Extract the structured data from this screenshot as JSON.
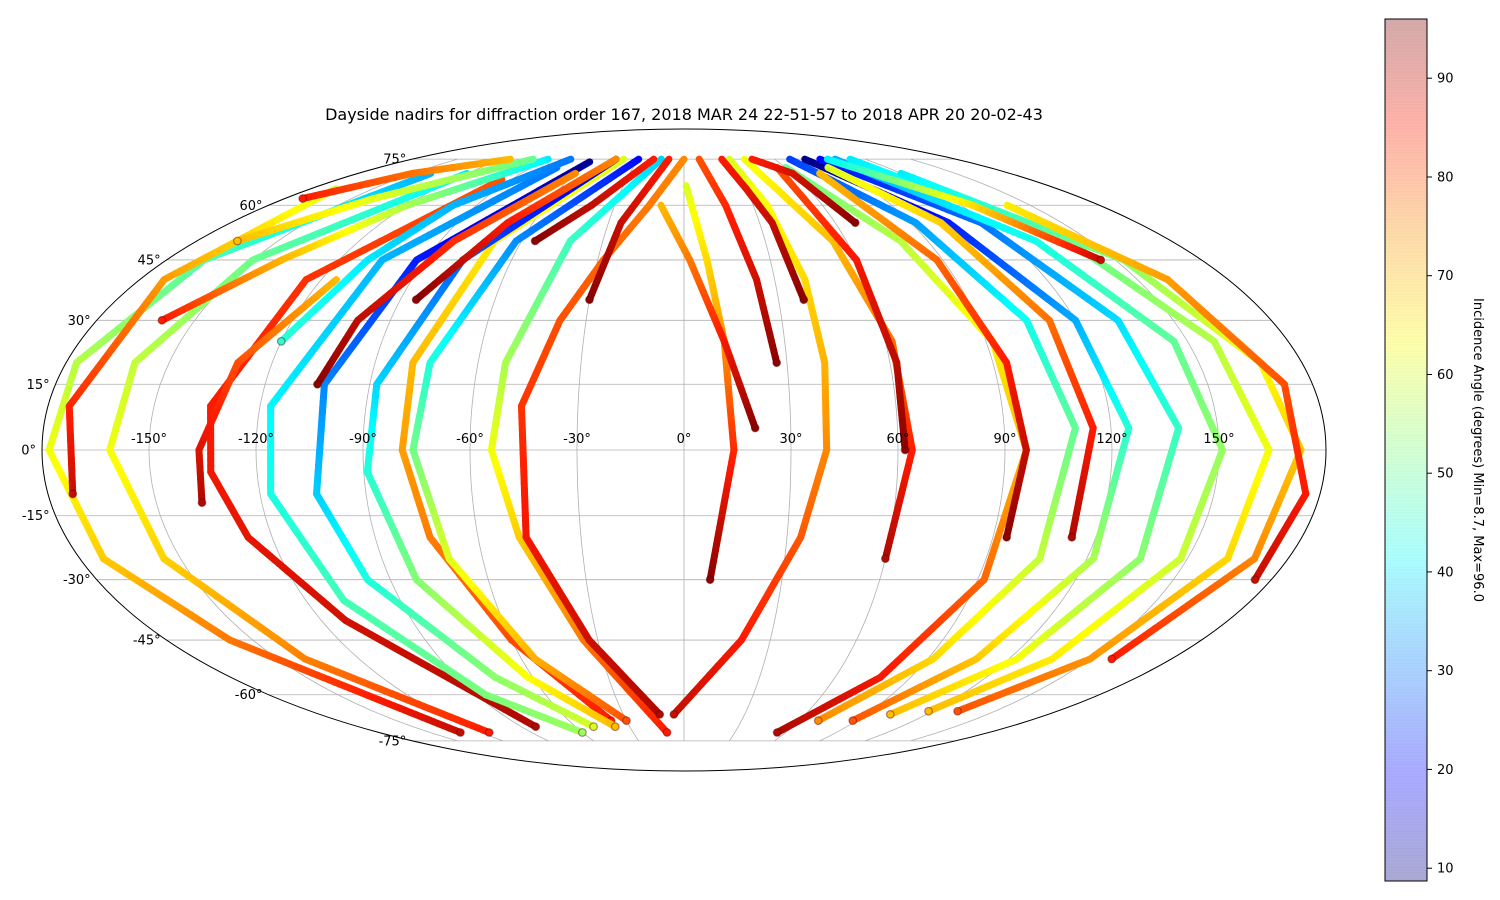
{
  "chart_data": {
    "type": "scatter",
    "projection": "mollweide",
    "title": "Dayside nadirs for diffraction order 167, 2018 MAR 24 22-51-57 to 2018 APR 20 20-02-43",
    "xlabel": "",
    "ylabel": "",
    "lon_ticks": [
      "-150°",
      "-120°",
      "-90°",
      "-60°",
      "-30°",
      "0°",
      "30°",
      "60°",
      "90°",
      "120°",
      "150°"
    ],
    "lon_tick_values": [
      -150,
      -120,
      -90,
      -60,
      -30,
      0,
      30,
      60,
      90,
      120,
      150
    ],
    "lat_ticks": [
      "75°",
      "60°",
      "45°",
      "30°",
      "15°",
      "0°",
      "-15°",
      "-30°",
      "-45°",
      "-60°",
      "-75°"
    ],
    "lat_tick_values": [
      75,
      60,
      45,
      30,
      15,
      0,
      -15,
      -30,
      -45,
      -60,
      -75
    ],
    "grid": true,
    "colormap": "jet",
    "colorbar": {
      "label": "Incidence Angle (degrees) Min=8.7, Max=96.0",
      "min": 8.7,
      "max": 96.0,
      "ticks": [
        "10",
        "20",
        "30",
        "40",
        "50",
        "60",
        "70",
        "80",
        "90"
      ],
      "tick_values": [
        10,
        20,
        30,
        40,
        50,
        60,
        70,
        80,
        90
      ]
    },
    "series": [
      {
        "lat": [
          75,
          50,
          20,
          0,
          -20,
          -45,
          -68
        ],
        "lon": [
          -40,
          -70,
          -79,
          -79,
          -74,
          -60,
          -38
        ],
        "inc_start": 60,
        "inc_end": 85
      },
      {
        "lat": [
          68,
          40,
          10,
          -5,
          -20,
          -40,
          -70
        ],
        "lon": [
          -95,
          -125,
          -134,
          -133,
          -127,
          -112,
          -82
        ],
        "inc_start": 80,
        "inc_end": 92
      },
      {
        "lat": [
          72,
          45,
          10,
          -10,
          -35,
          -60,
          -72
        ],
        "lon": [
          -75,
          -105,
          -117,
          -117,
          -108,
          -86,
          -60
        ],
        "inc_start": 30,
        "inc_end": 55
      },
      {
        "lat": [
          74,
          45,
          15,
          -10,
          -30,
          -55,
          -70
        ],
        "lon": [
          -60,
          -93,
          -103,
          -104,
          -97,
          -75,
          -50
        ],
        "inc_start": 10,
        "inc_end": 60
      },
      {
        "lat": [
          75,
          45,
          15,
          -5,
          -30,
          -55,
          -70
        ],
        "lon": [
          -45,
          -77,
          -88,
          -89,
          -82,
          -62,
          -38
        ],
        "inc_start": 15,
        "inc_end": 70
      },
      {
        "lat": [
          75,
          50,
          20,
          0,
          -25,
          -50,
          -68
        ],
        "lon": [
          -30,
          -62,
          -74,
          -76,
          -70,
          -55,
          -30
        ],
        "inc_start": 20,
        "inc_end": 80
      },
      {
        "lat": [
          70,
          45,
          20,
          0,
          -25,
          -50,
          -72
        ],
        "lon": [
          -120,
          -150,
          -160,
          -161,
          -155,
          -140,
          -115
        ],
        "inc_start": 40,
        "inc_end": 85
      },
      {
        "lat": [
          70,
          45,
          20,
          0,
          -25,
          -45,
          -72
        ],
        "lon": [
          -140,
          -167,
          -177,
          -178,
          -173,
          -158,
          -132
        ],
        "inc_start": 35,
        "inc_end": 90
      },
      {
        "lat": [
          65,
          40,
          10,
          -10
        ],
        "lon": [
          -168,
          -172,
          -174,
          -173
        ],
        "inc_start": 60,
        "inc_end": 90
      },
      {
        "lat": [
          40,
          20,
          0,
          -12
        ],
        "lon": [
          -115,
          -130,
          -136,
          -137
        ],
        "inc_start": 70,
        "inc_end": 92
      },
      {
        "lat": [
          75,
          50,
          20,
          0,
          -20,
          -45,
          -72
        ],
        "lon": [
          -15,
          -42,
          -52,
          -54,
          -48,
          -35,
          -10
        ],
        "inc_start": 38,
        "inc_end": 85
      },
      {
        "lat": [
          75,
          60,
          45,
          30,
          10,
          -20,
          -45,
          -66
        ],
        "lon": [
          0,
          -15,
          -28,
          -38,
          -46,
          -46,
          -33,
          -12
        ],
        "inc_start": 75,
        "inc_end": 92
      },
      {
        "lat": [
          66,
          45,
          25,
          0,
          -30
        ],
        "lon": [
          1,
          8,
          12,
          14,
          8
        ],
        "inc_start": 60,
        "inc_end": 95
      },
      {
        "lat": [
          60,
          45,
          25,
          5
        ],
        "lon": [
          -10,
          2,
          12,
          20
        ],
        "inc_start": 70,
        "inc_end": 95
      },
      {
        "lat": [
          75,
          60,
          40,
          20,
          0,
          -20,
          -45,
          -66
        ],
        "lon": [
          30,
          36,
          40,
          41,
          40,
          34,
          20,
          -5
        ],
        "inc_start": 60,
        "inc_end": 90
      },
      {
        "lat": [
          72,
          50,
          25,
          0,
          -30,
          -55,
          -72
        ],
        "lon": [
          60,
          80,
          92,
          96,
          92,
          78,
          55
        ],
        "inc_start": 50,
        "inc_end": 92
      },
      {
        "lat": [
          75,
          55,
          30,
          5,
          -25,
          -50,
          -68
        ],
        "lon": [
          70,
          92,
          105,
          110,
          106,
          92,
          70
        ],
        "inc_start": 25,
        "inc_end": 75
      },
      {
        "lat": [
          75,
          55,
          30,
          5,
          -25,
          -50,
          -68
        ],
        "lon": [
          80,
          105,
          120,
          125,
          122,
          108,
          88
        ],
        "inc_start": 8.7,
        "inc_end": 80
      },
      {
        "lat": [
          75,
          55,
          30,
          5,
          -25,
          -50,
          -66
        ],
        "lon": [
          90,
          118,
          133,
          139,
          136,
          123,
          102
        ],
        "inc_start": 20,
        "inc_end": 70
      },
      {
        "lat": [
          75,
          50,
          25,
          0,
          -25,
          -50,
          -65
        ],
        "lon": [
          100,
          130,
          146,
          151,
          148,
          136,
          118
        ],
        "inc_start": 35,
        "inc_end": 70
      },
      {
        "lat": [
          75,
          50,
          25,
          0,
          -25,
          -50,
          -65
        ],
        "lon": [
          110,
          142,
          158,
          164,
          162,
          150,
          132
        ],
        "inc_start": 40,
        "inc_end": 80
      },
      {
        "lat": [
          70,
          45,
          20,
          0,
          -25,
          -50
        ],
        "lon": [
          120,
          153,
          168,
          173,
          170,
          158
        ],
        "inc_start": 40,
        "inc_end": 85
      },
      {
        "lat": [
          60,
          40,
          15,
          -10,
          -30
        ],
        "lon": [
          140,
          160,
          172,
          176,
          175
        ],
        "inc_start": 65,
        "inc_end": 90
      },
      {
        "lat": [
          75,
          50,
          25,
          0,
          -25
        ],
        "lon": [
          40,
          55,
          62,
          64,
          60
        ],
        "inc_start": 62,
        "inc_end": 92
      },
      {
        "lat": [
          72,
          45,
          20,
          0
        ],
        "lon": [
          55,
          60,
          62,
          62
        ],
        "inc_start": 80,
        "inc_end": 95
      },
      {
        "lat": [
          70,
          45,
          20,
          0,
          -20
        ],
        "lon": [
          75,
          88,
          94,
          96,
          94
        ],
        "inc_start": 70,
        "inc_end": 95
      },
      {
        "lat": [
          72,
          55,
          30,
          5,
          -20
        ],
        "lon": [
          85,
          102,
          112,
          115,
          113
        ],
        "inc_start": 60,
        "inc_end": 92
      },
      {
        "lat": [
          75,
          60,
          45
        ],
        "lon": [
          95,
          125,
          145
        ],
        "inc_start": 40,
        "inc_end": 90
      },
      {
        "lat": [
          75,
          70,
          55
        ],
        "lon": [
          45,
          60,
          68
        ],
        "inc_start": 85,
        "inc_end": 95
      },
      {
        "lat": [
          75,
          65,
          55,
          35
        ],
        "lon": [
          25,
          30,
          35,
          38
        ],
        "inc_start": 85,
        "inc_end": 95
      },
      {
        "lat": [
          75,
          60,
          40,
          20
        ],
        "lon": [
          10,
          18,
          24,
          27
        ],
        "inc_start": 80,
        "inc_end": 95
      },
      {
        "lat": [
          75,
          60,
          50
        ],
        "lon": [
          -20,
          -40,
          -55
        ],
        "inc_start": 85,
        "inc_end": 95
      },
      {
        "lat": [
          75,
          55,
          35
        ],
        "lon": [
          -45,
          -70,
          -85
        ],
        "inc_start": 75,
        "inc_end": 95
      },
      {
        "lat": [
          70,
          50,
          30,
          15
        ],
        "lon": [
          -60,
          -85,
          -100,
          -105
        ],
        "inc_start": 75,
        "inc_end": 95
      },
      {
        "lat": [
          75,
          55,
          35
        ],
        "lon": [
          -10,
          -25,
          -30
        ],
        "inc_start": 85,
        "inc_end": 95
      },
      {
        "lat": [
          75,
          60,
          45,
          25
        ],
        "lon": [
          -75,
          -100,
          -110,
          -120
        ],
        "inc_start": 30,
        "inc_end": 45
      },
      {
        "lat": [
          75,
          60,
          45,
          30
        ],
        "lon": [
          -90,
          -120,
          -140,
          -160
        ],
        "inc_start": 40,
        "inc_end": 85
      },
      {
        "lat": [
          75,
          62,
          50
        ],
        "lon": [
          -100,
          -140,
          -165
        ],
        "inc_start": 50,
        "inc_end": 70
      },
      {
        "lat": [
          75,
          70,
          62
        ],
        "lon": [
          -115,
          -150,
          -172
        ],
        "inc_start": 70,
        "inc_end": 85
      }
    ]
  }
}
